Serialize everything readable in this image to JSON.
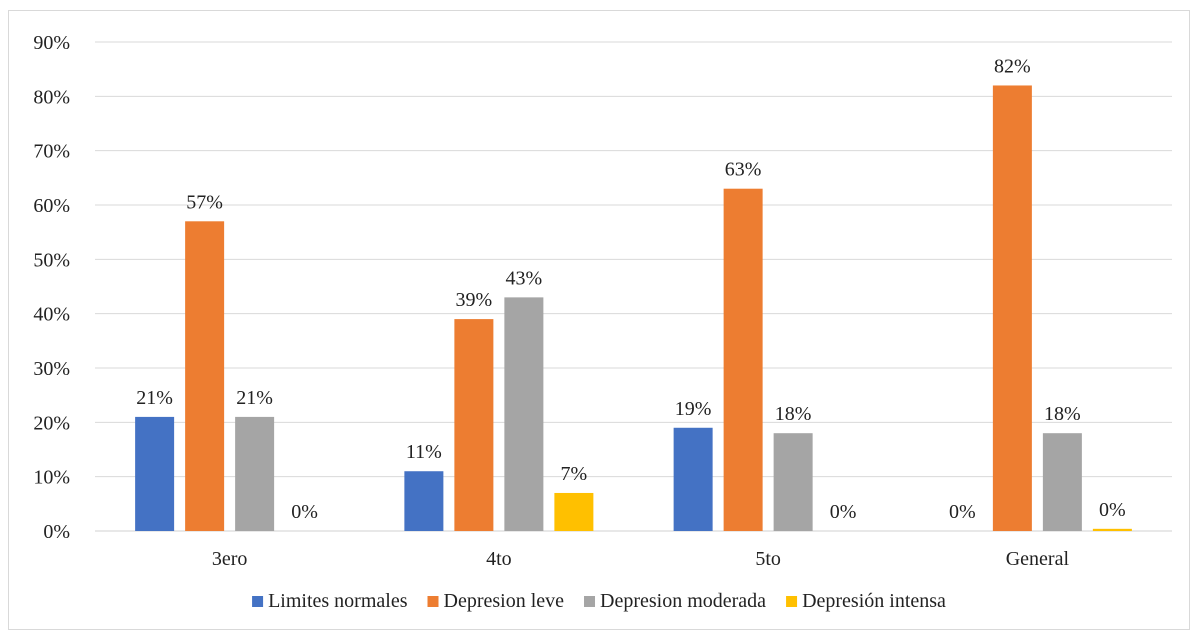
{
  "chart_data": {
    "type": "bar",
    "categories": [
      "3ero",
      "4to",
      "5to",
      "General"
    ],
    "series": [
      {
        "name": "Limites normales",
        "color": "#4472C4",
        "values": [
          21,
          11,
          19,
          0
        ],
        "labels": [
          "21%",
          "11%",
          "19%",
          "0%"
        ]
      },
      {
        "name": "Depresion leve",
        "color": "#ED7D31",
        "values": [
          57,
          39,
          63,
          82
        ],
        "labels": [
          "57%",
          "39%",
          "63%",
          "82%"
        ]
      },
      {
        "name": "Depresion moderada",
        "color": "#A5A5A5",
        "values": [
          21,
          43,
          18,
          18
        ],
        "labels": [
          "21%",
          "43%",
          "18%",
          "18%"
        ]
      },
      {
        "name": "Depresión intensa",
        "color": "#FFC000",
        "values": [
          0,
          7,
          0,
          0.4
        ],
        "labels": [
          "0%",
          "7%",
          "0%",
          "0%"
        ]
      }
    ],
    "y_ticks": [
      "0%",
      "10%",
      "20%",
      "30%",
      "40%",
      "50%",
      "60%",
      "70%",
      "80%",
      "90%"
    ],
    "ylim": [
      0,
      90
    ],
    "grid": true,
    "legend_position": "bottom"
  }
}
